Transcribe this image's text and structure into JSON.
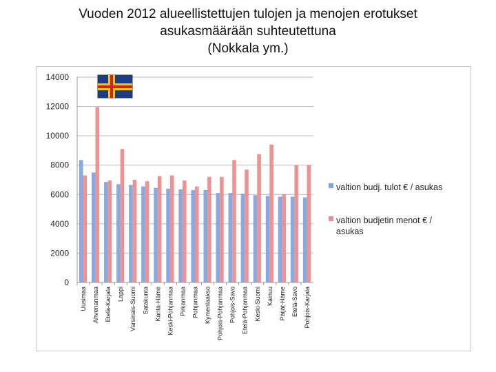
{
  "slide": {
    "title_lines": [
      "Vuoden 2012 alueellistettujen tulojen ja menojen erotukset",
      "asukasmäärään suhteutettuna",
      "(Nokkala ym.)"
    ]
  },
  "flag": {
    "name": "aland-flag",
    "colors": {
      "field": "#1a3f8a",
      "cross_outer": "#f2c500",
      "cross_inner": "#d42020"
    }
  },
  "chart_data": {
    "type": "bar",
    "title": "Vuoden 2012 alueellistettujen tulojen ja menojen erotukset asukasmäärään suhteutettuna (Nokkala ym.)",
    "xlabel": "",
    "ylabel": "",
    "ylim": [
      0,
      14000
    ],
    "yticks": [
      "0",
      "2000",
      "4000",
      "6000",
      "8000",
      "10000",
      "12000",
      "14000"
    ],
    "categories": [
      "Uusimaa",
      "Ahvenanmaa",
      "Etelä-Karjala",
      "Lappi",
      "Varsinais-Suomi",
      "Satakunta",
      "Kanta-Häme",
      "Keski-Pohjanmaa",
      "Pirkanmaa",
      "Pohjanmaa",
      "Kymenlaakso",
      "Pohjois-Pohjanmaa",
      "Pohjois-Savo",
      "Etelä-Pohjanmaa",
      "Keski-Suomi",
      "Kainuu",
      "Päijät-Häme",
      "Etelä-Savo",
      "Pohjois-Karjala"
    ],
    "series": [
      {
        "name": "valtion budj. tulot € / asukas",
        "color": "#7ea6e0",
        "values": [
          8350,
          7500,
          6850,
          6700,
          6650,
          6550,
          6450,
          6400,
          6350,
          6300,
          6300,
          6100,
          6100,
          6050,
          5950,
          5900,
          5850,
          5850,
          5800
        ]
      },
      {
        "name": "valtion budjetin menot € / asukas",
        "color": "#ee8c8c",
        "values": [
          7300,
          11950,
          6950,
          9100,
          7000,
          6900,
          7250,
          7300,
          6950,
          6550,
          7200,
          7200,
          8350,
          7700,
          8750,
          9400,
          6000,
          8000,
          8000
        ]
      }
    ],
    "legend": {
      "position": "right",
      "entries": [
        {
          "text_lines": [
            "valtion budj. tulot € / asukas"
          ]
        },
        {
          "text_lines": [
            "valtion budjetin menot €  /",
            "asukas"
          ]
        }
      ]
    },
    "grid": true
  }
}
